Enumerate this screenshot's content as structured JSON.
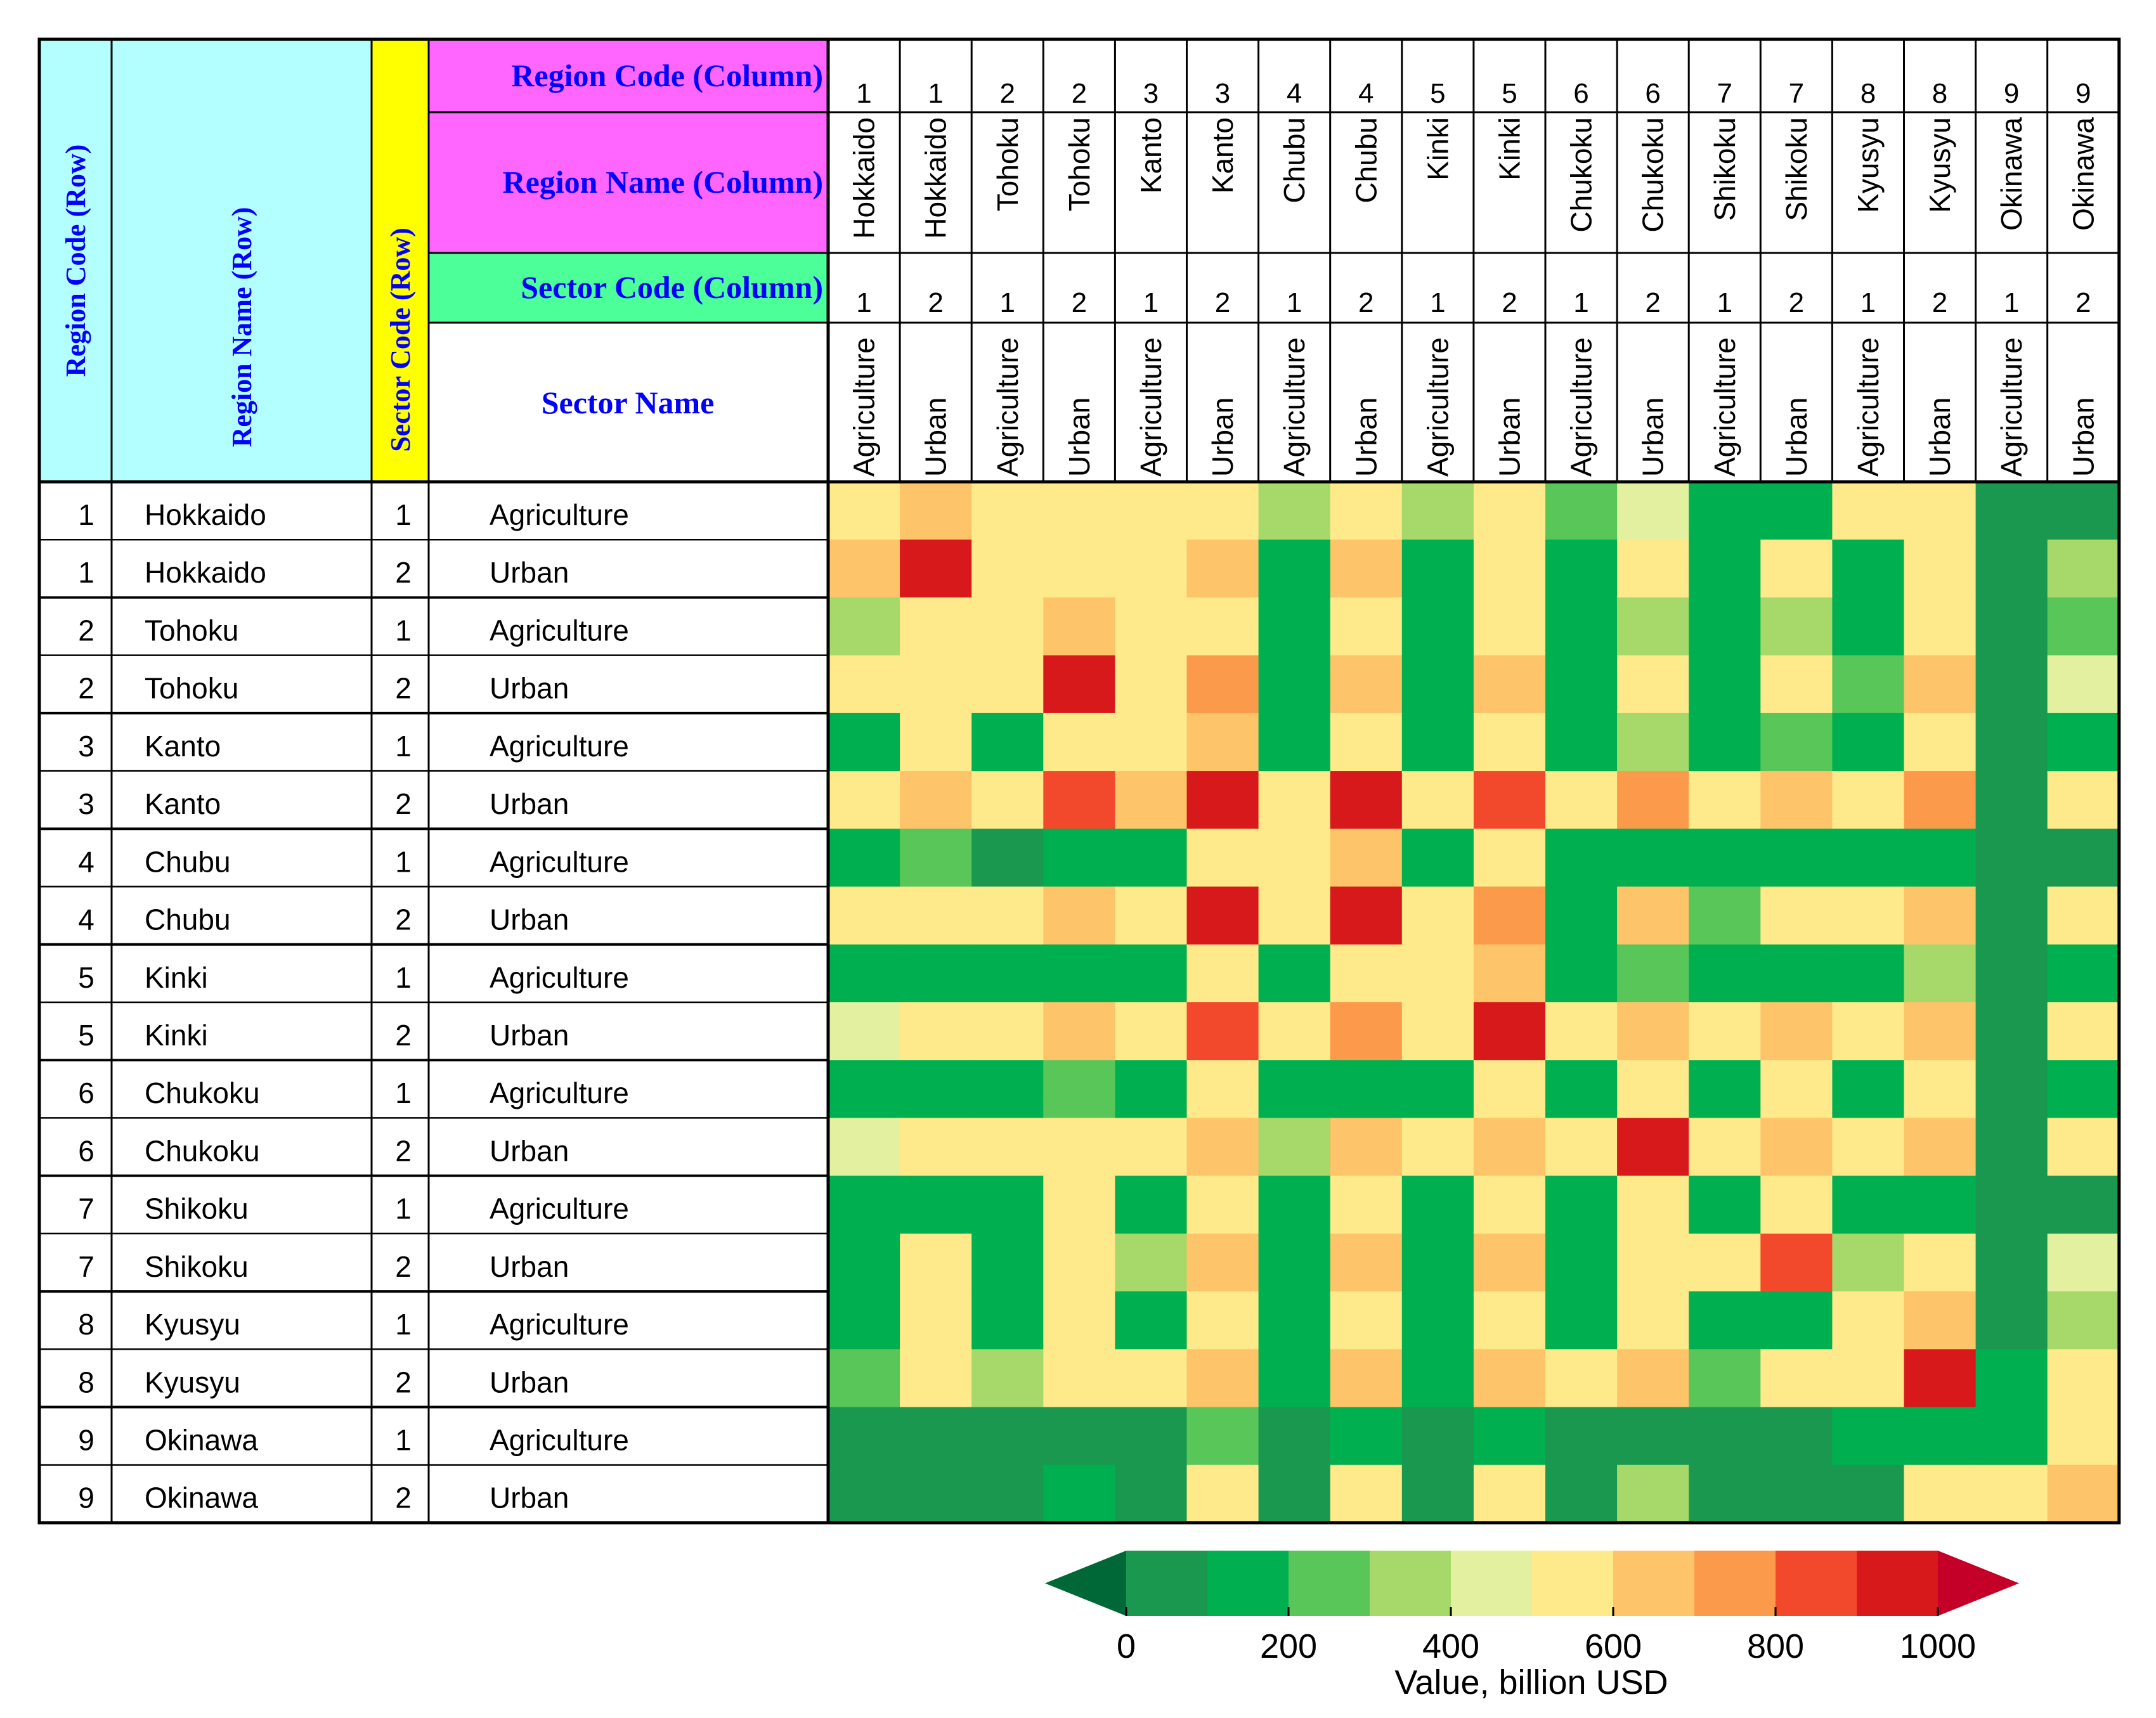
{
  "chart_data": {
    "type": "heatmap",
    "header": {
      "row_code_label": "Region Code (Row)",
      "row_name_label": "Region Name (Row)",
      "row_sector_label": "Sector Code (Row)",
      "col_code_label": "Region Code (Column)",
      "col_name_label": "Region Name (Column)",
      "col_sector_code_label": "Sector Code (Column)",
      "col_sector_name_label": "Sector Name"
    },
    "header_colors": {
      "row_code": "#b3ffff",
      "row_name": "#b3ffff",
      "row_sector": "#ffff00",
      "col_code": "#ff66ff",
      "col_name": "#ff66ff",
      "col_sector_code": "#4dff99",
      "col_sector_name": "#ffffff",
      "label_text": "#0000ff"
    },
    "columns": [
      {
        "region_code": "1",
        "region_name": "Hokkaido",
        "sector_code": "1",
        "sector_name": "Agriculture"
      },
      {
        "region_code": "1",
        "region_name": "Hokkaido",
        "sector_code": "2",
        "sector_name": "Urban"
      },
      {
        "region_code": "2",
        "region_name": "Tohoku",
        "sector_code": "1",
        "sector_name": "Agriculture"
      },
      {
        "region_code": "2",
        "region_name": "Tohoku",
        "sector_code": "2",
        "sector_name": "Urban"
      },
      {
        "region_code": "3",
        "region_name": "Kanto",
        "sector_code": "1",
        "sector_name": "Agriculture"
      },
      {
        "region_code": "3",
        "region_name": "Kanto",
        "sector_code": "2",
        "sector_name": "Urban"
      },
      {
        "region_code": "4",
        "region_name": "Chubu",
        "sector_code": "1",
        "sector_name": "Agriculture"
      },
      {
        "region_code": "4",
        "region_name": "Chubu",
        "sector_code": "2",
        "sector_name": "Urban"
      },
      {
        "region_code": "5",
        "region_name": "Kinki",
        "sector_code": "1",
        "sector_name": "Agriculture"
      },
      {
        "region_code": "5",
        "region_name": "Kinki",
        "sector_code": "2",
        "sector_name": "Urban"
      },
      {
        "region_code": "6",
        "region_name": "Chukoku",
        "sector_code": "1",
        "sector_name": "Agriculture"
      },
      {
        "region_code": "6",
        "region_name": "Chukoku",
        "sector_code": "2",
        "sector_name": "Urban"
      },
      {
        "region_code": "7",
        "region_name": "Shikoku",
        "sector_code": "1",
        "sector_name": "Agriculture"
      },
      {
        "region_code": "7",
        "region_name": "Shikoku",
        "sector_code": "2",
        "sector_name": "Urban"
      },
      {
        "region_code": "8",
        "region_name": "Kyusyu",
        "sector_code": "1",
        "sector_name": "Agriculture"
      },
      {
        "region_code": "8",
        "region_name": "Kyusyu",
        "sector_code": "2",
        "sector_name": "Urban"
      },
      {
        "region_code": "9",
        "region_name": "Okinawa",
        "sector_code": "1",
        "sector_name": "Agriculture"
      },
      {
        "region_code": "9",
        "region_name": "Okinawa",
        "sector_code": "2",
        "sector_name": "Urban"
      }
    ],
    "rows": [
      {
        "region_code": "1",
        "region_name": "Hokkaido",
        "sector_code": "1",
        "sector_name": "Agriculture"
      },
      {
        "region_code": "1",
        "region_name": "Hokkaido",
        "sector_code": "2",
        "sector_name": "Urban"
      },
      {
        "region_code": "2",
        "region_name": "Tohoku",
        "sector_code": "1",
        "sector_name": "Agriculture"
      },
      {
        "region_code": "2",
        "region_name": "Tohoku",
        "sector_code": "2",
        "sector_name": "Urban"
      },
      {
        "region_code": "3",
        "region_name": "Kanto",
        "sector_code": "1",
        "sector_name": "Agriculture"
      },
      {
        "region_code": "3",
        "region_name": "Kanto",
        "sector_code": "2",
        "sector_name": "Urban"
      },
      {
        "region_code": "4",
        "region_name": "Chubu",
        "sector_code": "1",
        "sector_name": "Agriculture"
      },
      {
        "region_code": "4",
        "region_name": "Chubu",
        "sector_code": "2",
        "sector_name": "Urban"
      },
      {
        "region_code": "5",
        "region_name": "Kinki",
        "sector_code": "1",
        "sector_name": "Agriculture"
      },
      {
        "region_code": "5",
        "region_name": "Kinki",
        "sector_code": "2",
        "sector_name": "Urban"
      },
      {
        "region_code": "6",
        "region_name": "Chukoku",
        "sector_code": "1",
        "sector_name": "Agriculture"
      },
      {
        "region_code": "6",
        "region_name": "Chukoku",
        "sector_code": "2",
        "sector_name": "Urban"
      },
      {
        "region_code": "7",
        "region_name": "Shikoku",
        "sector_code": "1",
        "sector_name": "Agriculture"
      },
      {
        "region_code": "7",
        "region_name": "Shikoku",
        "sector_code": "2",
        "sector_name": "Urban"
      },
      {
        "region_code": "8",
        "region_name": "Kyusyu",
        "sector_code": "1",
        "sector_name": "Agriculture"
      },
      {
        "region_code": "8",
        "region_name": "Kyusyu",
        "sector_code": "2",
        "sector_name": "Urban"
      },
      {
        "region_code": "9",
        "region_name": "Okinawa",
        "sector_code": "1",
        "sector_name": "Agriculture"
      },
      {
        "region_code": "9",
        "region_name": "Okinawa",
        "sector_code": "2",
        "sector_name": "Urban"
      }
    ],
    "values": [
      [
        550,
        620,
        520,
        550,
        550,
        550,
        300,
        550,
        300,
        550,
        200,
        420,
        150,
        150,
        550,
        550,
        80,
        80
      ],
      [
        600,
        950,
        550,
        550,
        550,
        650,
        150,
        600,
        100,
        550,
        100,
        550,
        100,
        550,
        150,
        550,
        80,
        320
      ],
      [
        350,
        550,
        550,
        600,
        550,
        550,
        100,
        550,
        100,
        550,
        100,
        380,
        100,
        300,
        100,
        550,
        80,
        280
      ],
      [
        550,
        550,
        580,
        950,
        550,
        750,
        150,
        600,
        100,
        600,
        100,
        550,
        100,
        550,
        250,
        600,
        80,
        420
      ],
      [
        150,
        550,
        150,
        550,
        550,
        650,
        100,
        550,
        100,
        550,
        100,
        300,
        100,
        280,
        100,
        550,
        80,
        150
      ],
      [
        550,
        650,
        550,
        800,
        620,
        950,
        550,
        1000,
        550,
        880,
        550,
        700,
        550,
        650,
        550,
        750,
        80,
        550
      ],
      [
        100,
        280,
        80,
        120,
        100,
        550,
        550,
        600,
        100,
        550,
        100,
        150,
        100,
        150,
        100,
        150,
        80,
        80
      ],
      [
        550,
        580,
        520,
        620,
        550,
        920,
        550,
        1000,
        520,
        780,
        150,
        650,
        250,
        550,
        550,
        650,
        80,
        550
      ],
      [
        100,
        100,
        100,
        150,
        100,
        550,
        100,
        550,
        550,
        600,
        100,
        250,
        100,
        150,
        100,
        320,
        80,
        100
      ],
      [
        450,
        580,
        550,
        620,
        550,
        880,
        550,
        780,
        550,
        1000,
        550,
        650,
        550,
        620,
        550,
        650,
        80,
        550
      ],
      [
        100,
        100,
        100,
        250,
        100,
        550,
        100,
        150,
        100,
        550,
        100,
        550,
        100,
        550,
        150,
        550,
        80,
        100
      ],
      [
        450,
        550,
        550,
        550,
        550,
        680,
        380,
        650,
        550,
        680,
        550,
        950,
        550,
        600,
        550,
        650,
        80,
        550
      ],
      [
        100,
        100,
        100,
        550,
        100,
        550,
        100,
        550,
        100,
        550,
        100,
        550,
        100,
        550,
        100,
        150,
        80,
        80
      ],
      [
        100,
        550,
        100,
        550,
        320,
        650,
        100,
        600,
        150,
        620,
        150,
        550,
        550,
        850,
        350,
        550,
        80,
        450
      ],
      [
        150,
        550,
        120,
        550,
        120,
        550,
        100,
        550,
        100,
        550,
        100,
        550,
        100,
        180,
        550,
        620,
        80,
        300
      ],
      [
        200,
        550,
        300,
        550,
        550,
        680,
        150,
        650,
        180,
        650,
        550,
        620,
        250,
        550,
        550,
        950,
        150,
        550
      ],
      [
        80,
        80,
        80,
        80,
        80,
        280,
        80,
        100,
        80,
        100,
        80,
        80,
        80,
        80,
        100,
        150,
        150,
        550
      ],
      [
        80,
        80,
        80,
        150,
        80,
        550,
        80,
        550,
        80,
        550,
        80,
        320,
        80,
        80,
        80,
        550,
        550,
        650
      ]
    ],
    "colorbar": {
      "label": "Value, billion USD",
      "tick_labels": [
        "0",
        "200",
        "400",
        "600",
        "800",
        "1000"
      ],
      "ticks": [
        0,
        200,
        400,
        600,
        800,
        1000
      ],
      "step": 100,
      "extend": "both",
      "colors": [
        "#006837",
        "#1a9850",
        "#00b050",
        "#59c65a",
        "#a6d96a",
        "#e3f0a0",
        "#fee98b",
        "#fdc46a",
        "#fc9a4c",
        "#f2482c",
        "#d7191c",
        "#c40028"
      ]
    }
  }
}
